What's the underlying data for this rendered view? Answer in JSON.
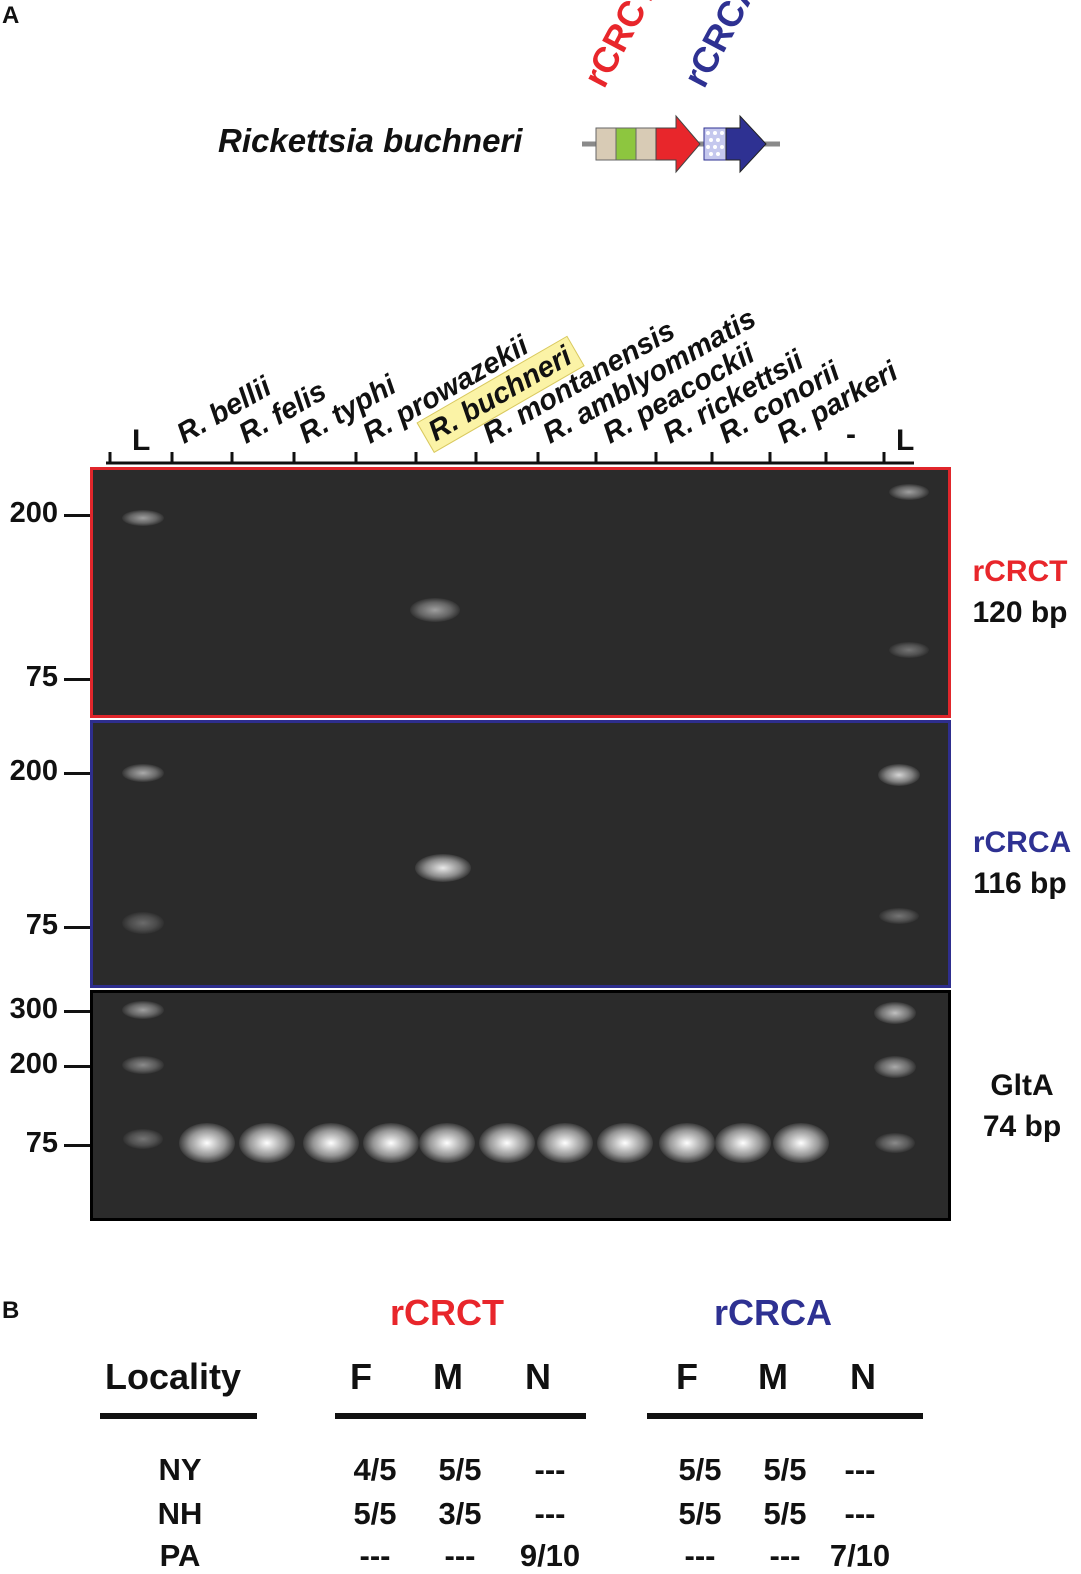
{
  "panel_a": {
    "letter": "A",
    "species": "Rickettsia buchneri",
    "genes": [
      {
        "label": "rCRCT",
        "color": "#e8262b"
      },
      {
        "label": "rCRCA",
        "color": "#2e3192"
      }
    ],
    "lanes": [
      "L",
      "R. bellii",
      "R. felis",
      "R. typhi",
      "R. prowazekii",
      "R. buchneri",
      "R. montanensis",
      "R. amblyommatis",
      "R. peacockii",
      "R. rickettsii",
      "R. conorii",
      "R. parkeri",
      "-",
      "L"
    ],
    "highlighted_lane": "R. buchneri",
    "highlight_color": "#fbf3a6",
    "gels": [
      {
        "name": "rCRCT",
        "gene": "rCRCT",
        "size": "120 bp",
        "ladder": [
          "200",
          "75"
        ],
        "border_color": "#e0262b",
        "label_color": "#e8262b"
      },
      {
        "name": "rCRCA",
        "gene": "rCRCA",
        "size": "116 bp",
        "ladder": [
          "200",
          "75"
        ],
        "border_color": "#2e2e8e",
        "label_color": "#2e3192"
      },
      {
        "name": "GltA",
        "gene": "GltA",
        "size": "74 bp",
        "ladder": [
          "300",
          "200",
          "75"
        ],
        "border_color": "#000000",
        "label_color": "#111111"
      }
    ]
  },
  "panel_b": {
    "letter": "B",
    "group_headers": [
      {
        "label": "rCRCT",
        "color": "#e8262b"
      },
      {
        "label": "rCRCA",
        "color": "#2e3192"
      }
    ],
    "columns": [
      "Locality",
      "F",
      "M",
      "N",
      "F",
      "M",
      "N"
    ],
    "rows": [
      {
        "locality": "NY",
        "values": [
          "4/5",
          "5/5",
          "---",
          "5/5",
          "5/5",
          "---"
        ]
      },
      {
        "locality": "NH",
        "values": [
          "5/5",
          "3/5",
          "---",
          "5/5",
          "5/5",
          "---"
        ]
      },
      {
        "locality": "PA",
        "values": [
          "---",
          "---",
          "9/10",
          "---",
          "---",
          "7/10"
        ]
      }
    ]
  }
}
